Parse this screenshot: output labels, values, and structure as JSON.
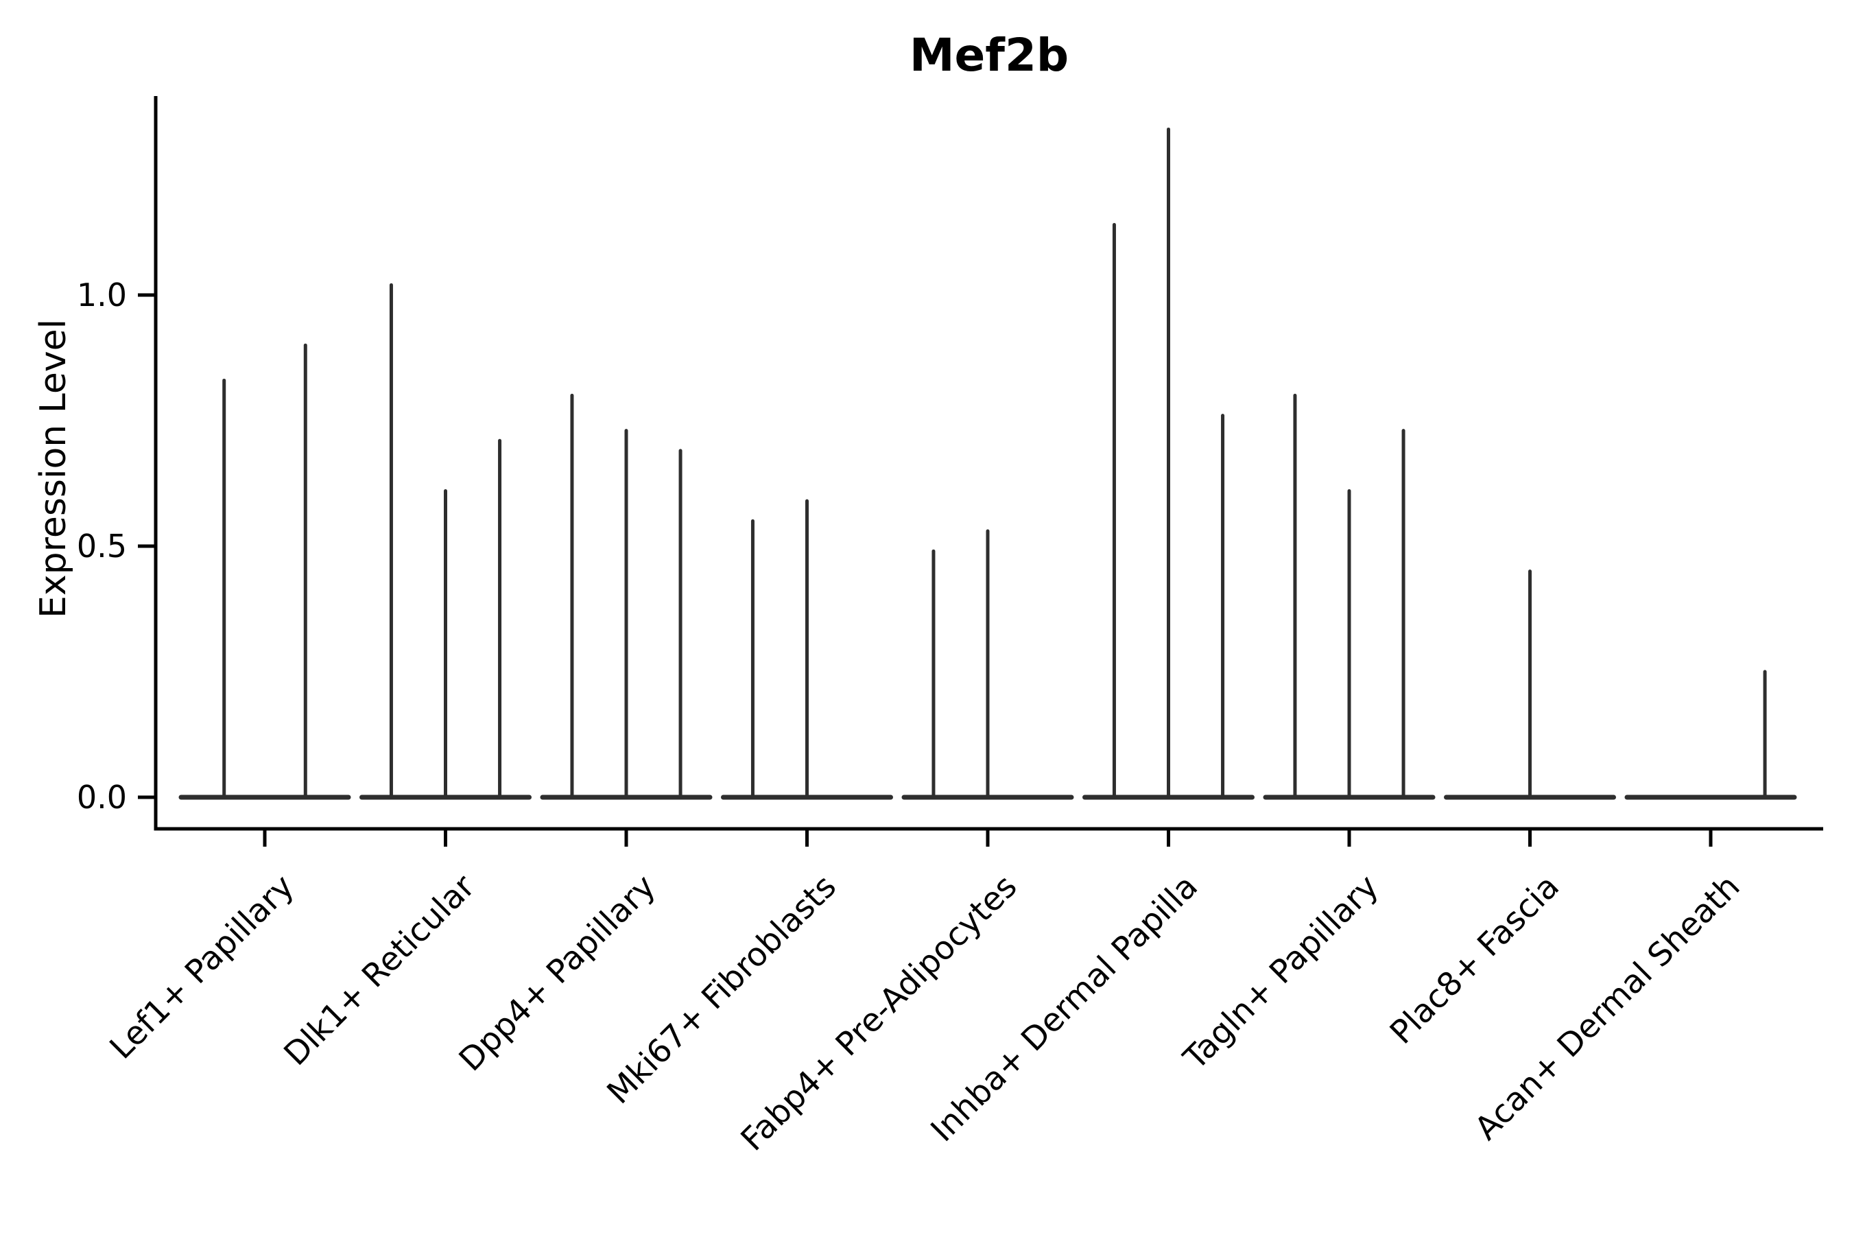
{
  "colors": {
    "violin": "#2e2e2e",
    "axis": "#000000",
    "background": "#ffffff"
  },
  "chart_data": {
    "type": "violin",
    "title": "Mef2b",
    "ylabel": "Expression Level",
    "xlabel": "",
    "ylim": [
      -0.06,
      1.4
    ],
    "grid": false,
    "legend": "none",
    "yticks": [
      {
        "value": 0.0,
        "label": "0.0"
      },
      {
        "value": 0.5,
        "label": "0.5"
      },
      {
        "value": 1.0,
        "label": "1.0"
      }
    ],
    "categories": [
      "Lef1+ Papillary",
      "Dlk1+ Reticular",
      "Dpp4+ Papillary",
      "Mki67+ Fibroblasts",
      "Fabp4+ Pre-Adipocytes",
      "Inhba+ Dermal Papilla",
      "Tagln+ Papillary",
      "Plac8+ Fascia",
      "Acan+ Dermal Sheath"
    ],
    "baseline_halfwidth": 0.463,
    "groups": [
      {
        "category": "Lef1+ Papillary",
        "violins": [
          {
            "offset": -0.225,
            "max": 0.83
          },
          {
            "offset": 0.225,
            "max": 0.9
          }
        ]
      },
      {
        "category": "Dlk1+ Reticular",
        "violins": [
          {
            "offset": -0.3,
            "max": 1.02
          },
          {
            "offset": 0,
            "max": 0.61
          },
          {
            "offset": 0.3,
            "max": 0.71
          }
        ]
      },
      {
        "category": "Dpp4+ Papillary",
        "violins": [
          {
            "offset": -0.3,
            "max": 0.8
          },
          {
            "offset": 0,
            "max": 0.73
          },
          {
            "offset": 0.3,
            "max": 0.69
          }
        ]
      },
      {
        "category": "Mki67+ Fibroblasts",
        "violins": [
          {
            "offset": -0.3,
            "max": 0.55
          },
          {
            "offset": 0,
            "max": 0.59
          }
        ]
      },
      {
        "category": "Fabp4+ Pre-Adipocytes",
        "violins": [
          {
            "offset": -0.3,
            "max": 0.49
          },
          {
            "offset": 0,
            "max": 0.53
          }
        ]
      },
      {
        "category": "Inhba+ Dermal Papilla",
        "violins": [
          {
            "offset": -0.3,
            "max": 1.14
          },
          {
            "offset": 0,
            "max": 1.33
          },
          {
            "offset": 0.3,
            "max": 0.76
          }
        ]
      },
      {
        "category": "Tagln+ Papillary",
        "violins": [
          {
            "offset": -0.3,
            "max": 0.8
          },
          {
            "offset": 0,
            "max": 0.61
          },
          {
            "offset": 0.3,
            "max": 0.73
          }
        ]
      },
      {
        "category": "Plac8+ Fascia",
        "violins": [
          {
            "offset": 0,
            "max": 0.45
          }
        ]
      },
      {
        "category": "Acan+ Dermal Sheath",
        "violins": [
          {
            "offset": 0.3,
            "max": 0.25
          }
        ]
      }
    ]
  }
}
